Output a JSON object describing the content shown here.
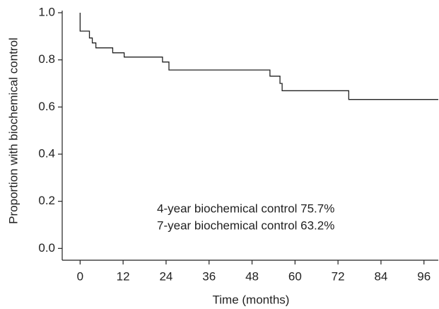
{
  "chart_data": {
    "type": "line",
    "step": "post",
    "xlabel": "Time (months)",
    "ylabel": "Proportion with biochemical control",
    "x": [
      0,
      0,
      2.6,
      3.4,
      4.4,
      9.1,
      12.3,
      23,
      24.8,
      53,
      55.8,
      56.4,
      75,
      100
    ],
    "series": [
      {
        "color": "#222222",
        "values": [
          1.0,
          0.922,
          0.893,
          0.872,
          0.851,
          0.83,
          0.812,
          0.791,
          0.757,
          0.731,
          0.7,
          0.669,
          0.632,
          0.632
        ]
      }
    ],
    "xlim": [
      -5,
      100
    ],
    "xticks": [
      0,
      12,
      24,
      36,
      48,
      60,
      72,
      84,
      96
    ],
    "ylim": [
      -0.05,
      1.0
    ],
    "yticks": [
      {
        "value": 0,
        "label": "0.0"
      },
      0.2,
      0.4,
      0.6,
      0.8,
      {
        "value": 1,
        "label": "1.0"
      }
    ],
    "annotations": [
      "4-year biochemical control 75.7%",
      "7-year biochemical control 63.2%"
    ]
  }
}
